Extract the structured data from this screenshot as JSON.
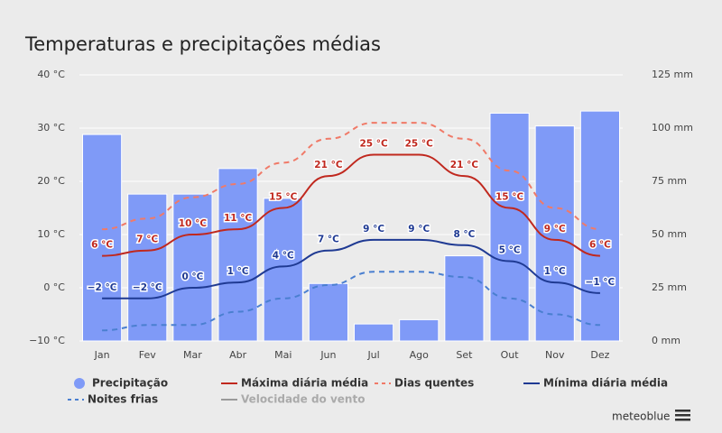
{
  "chart_data": {
    "type": "bar-line",
    "title": "Temperaturas e precipitações médias",
    "categories": [
      "Jan",
      "Fev",
      "Mar",
      "Abr",
      "Mai",
      "Jun",
      "Jul",
      "Ago",
      "Set",
      "Out",
      "Nov",
      "Dez"
    ],
    "ylim": [
      -10,
      40
    ],
    "yticks": [
      {
        "value": -10,
        "label": "−10 °C"
      },
      {
        "value": 0,
        "label": "0 °C"
      },
      {
        "value": 10,
        "label": "10 °C"
      },
      {
        "value": 20,
        "label": "20 °C"
      },
      {
        "value": 30,
        "label": "30 °C"
      },
      {
        "value": 40,
        "label": "40 °C"
      }
    ],
    "y2lim": [
      0,
      125
    ],
    "y2ticks": [
      {
        "value": 0,
        "label": "0 mm"
      },
      {
        "value": 25,
        "label": "25 mm"
      },
      {
        "value": 50,
        "label": "50 mm"
      },
      {
        "value": 75,
        "label": "75 mm"
      },
      {
        "value": 100,
        "label": "100 mm"
      },
      {
        "value": 125,
        "label": "125 mm"
      }
    ],
    "grid": true,
    "series": [
      {
        "name": "Precipitação",
        "kind": "bar",
        "axis": "y2",
        "color": "#7f9af7",
        "values": [
          97,
          69,
          69,
          81,
          67,
          27,
          8,
          10,
          40,
          107,
          101,
          108
        ]
      },
      {
        "name": "Máxima diária média",
        "kind": "line",
        "color": "#c0281e",
        "values": [
          6,
          7,
          10,
          11,
          15,
          21,
          25,
          25,
          21,
          15,
          9,
          6
        ],
        "value_labels": [
          "6 °C",
          "7 °C",
          "10 °C",
          "11 °C",
          "15 °C",
          "21 °C",
          "25 °C",
          "25 °C",
          "21 °C",
          "15 °C",
          "9 °C",
          "6 °C"
        ]
      },
      {
        "name": "Dias quentes",
        "kind": "dashed",
        "color": "#f07a68",
        "values": [
          11,
          13,
          17,
          19.5,
          23.5,
          28,
          31,
          31,
          28,
          22,
          15,
          11
        ]
      },
      {
        "name": "Mínima diária média",
        "kind": "line",
        "color": "#1f3a93",
        "values": [
          -2,
          -2,
          0,
          1,
          4,
          7,
          9,
          9,
          8,
          5,
          1,
          -1
        ],
        "value_labels": [
          "−2 °C",
          "−2 °C",
          "0 °C",
          "1 °C",
          "4 °C",
          "7 °C",
          "9 °C",
          "9 °C",
          "8 °C",
          "5 °C",
          "1 °C",
          "−1 °C"
        ]
      },
      {
        "name": "Noites frias",
        "kind": "dashed",
        "color": "#4a7fd0",
        "values": [
          -8,
          -7,
          -7,
          -4.5,
          -2,
          0.5,
          3,
          3,
          2,
          -2,
          -5,
          -7
        ]
      },
      {
        "name": "Velocidade do vento",
        "kind": "line",
        "color": "#9a9a9a",
        "visible": false
      }
    ],
    "credit": "meteoblue"
  }
}
